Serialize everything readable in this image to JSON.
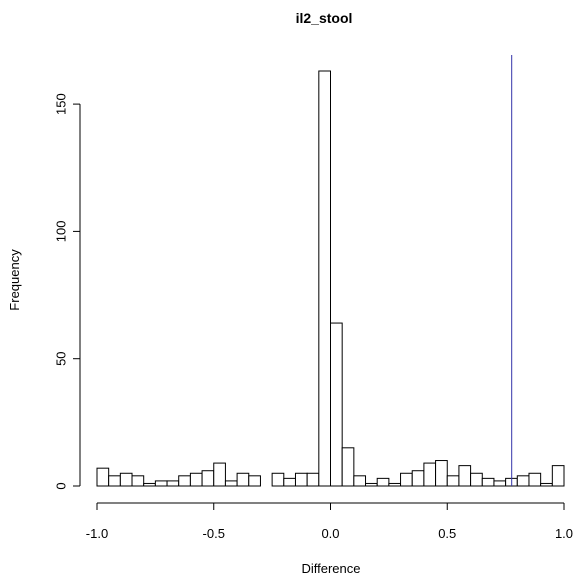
{
  "chart_data": {
    "type": "bar",
    "title": "il2_stool",
    "xlabel": "Difference",
    "ylabel": "Frequency",
    "xlim": [
      -1.0,
      1.0
    ],
    "ylim": [
      0,
      163
    ],
    "xticks": [
      -1.0,
      -0.5,
      0.0,
      0.5,
      1.0
    ],
    "xtick_labels": [
      "-1.0",
      "-0.5",
      "0.0",
      "0.5",
      "1.0"
    ],
    "yticks": [
      0,
      50,
      100,
      150
    ],
    "ytick_labels": [
      "0",
      "50",
      "100",
      "150"
    ],
    "bin_width": 0.05,
    "bins_start": [
      -1.0,
      -0.95,
      -0.9,
      -0.85,
      -0.8,
      -0.75,
      -0.7,
      -0.65,
      -0.6,
      -0.55,
      -0.5,
      -0.45,
      -0.4,
      -0.35,
      -0.3,
      -0.25,
      -0.2,
      -0.15,
      -0.1,
      -0.05,
      0.0,
      0.05,
      0.1,
      0.15,
      0.2,
      0.25,
      0.3,
      0.35,
      0.4,
      0.45,
      0.5,
      0.55,
      0.6,
      0.65,
      0.7,
      0.75,
      0.8,
      0.85,
      0.9,
      0.95
    ],
    "counts": [
      7,
      4,
      5,
      4,
      1,
      2,
      2,
      4,
      5,
      6,
      9,
      2,
      5,
      4,
      0,
      5,
      3,
      5,
      5,
      163,
      64,
      15,
      4,
      1,
      3,
      1,
      5,
      6,
      9,
      10,
      4,
      8,
      5,
      3,
      2,
      3,
      4,
      5,
      1,
      8
    ],
    "vline": {
      "x": 0.776,
      "color": "#3333aa"
    },
    "bar_fill": "#ffffff",
    "bar_stroke": "#000000",
    "grid": false
  }
}
